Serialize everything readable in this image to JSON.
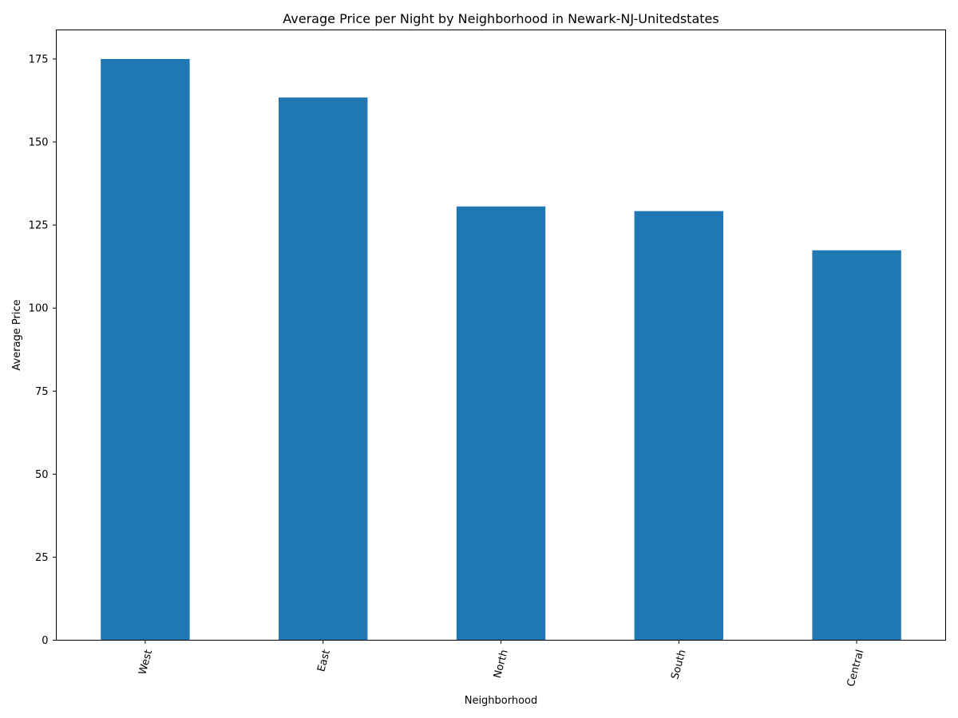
{
  "chart_data": {
    "type": "bar",
    "title": "Average Price per Night by Neighborhood in Newark-NJ-Unitedstates",
    "xlabel": "Neighborhood",
    "ylabel": "Average Price",
    "categories": [
      "West",
      "East",
      "North",
      "South",
      "Central"
    ],
    "values": [
      175.0,
      163.4,
      130.6,
      129.2,
      117.4
    ],
    "ylim": [
      0,
      183.75
    ],
    "yticks": [
      0,
      25,
      50,
      75,
      100,
      125,
      150,
      175
    ],
    "bar_color": "#1f77b4",
    "grid": false,
    "legend": "none"
  }
}
